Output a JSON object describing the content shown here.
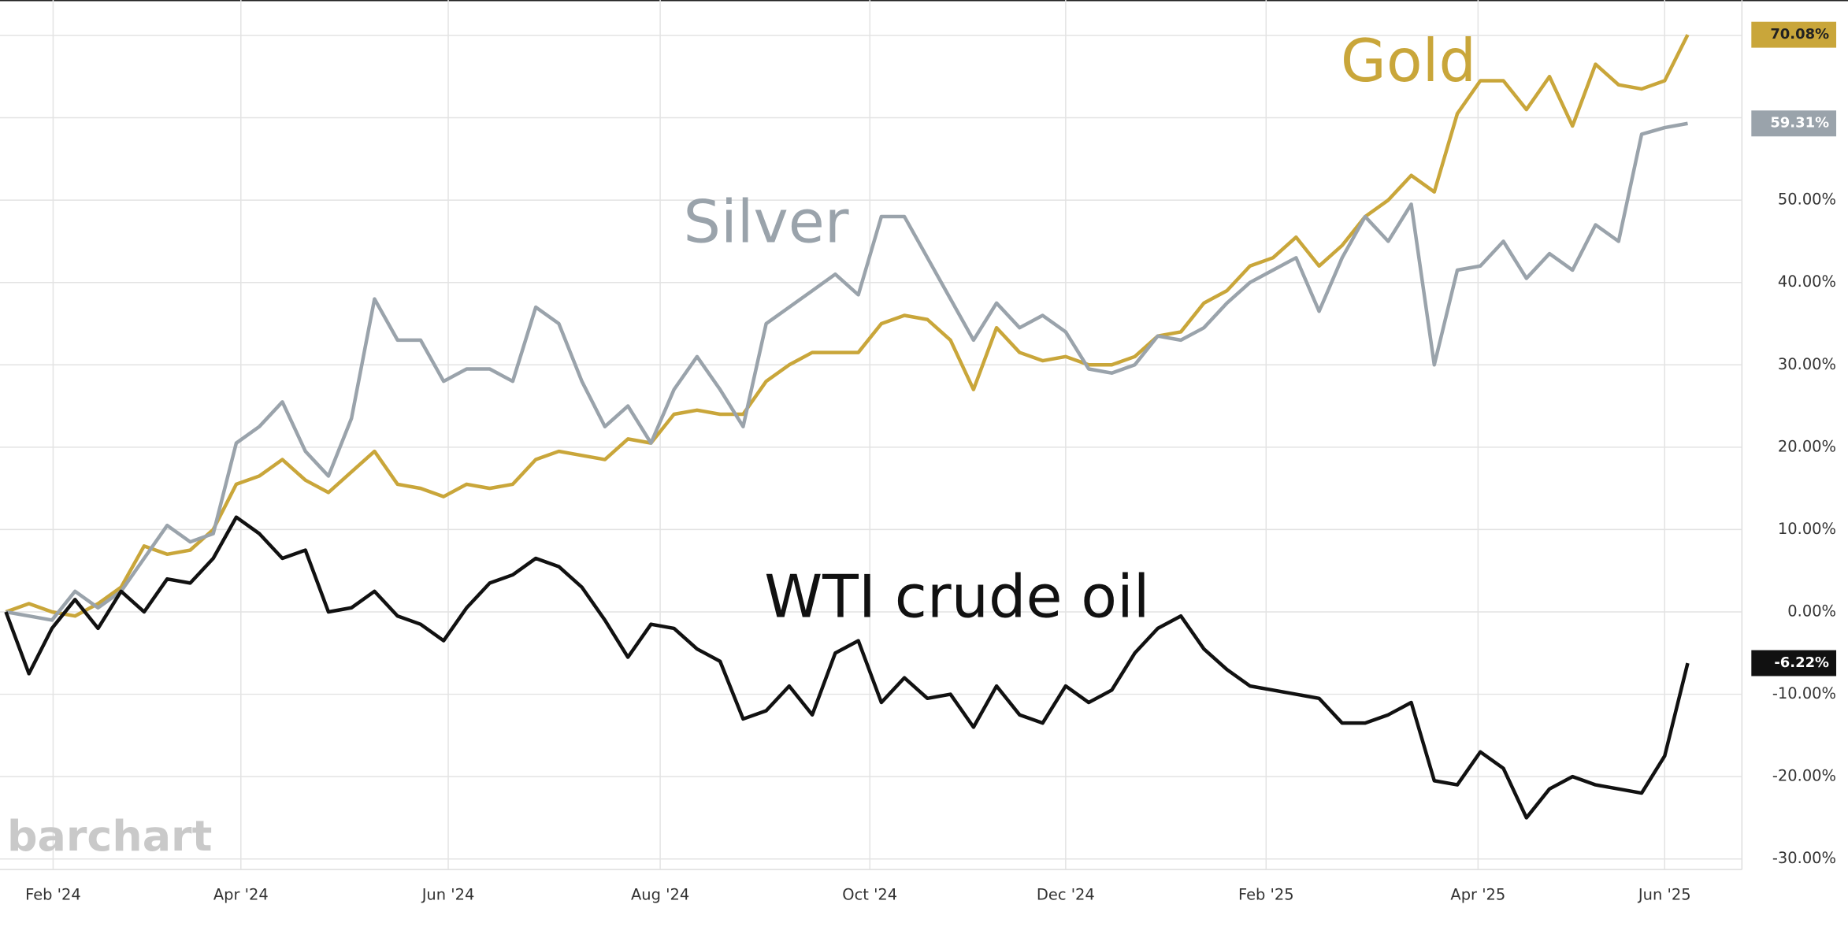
{
  "chart_data": {
    "type": "line",
    "watermark": "barchart",
    "xlim": [
      0,
      75.2
    ],
    "xticks": [
      {
        "value": 2.05,
        "label": "Feb '24"
      },
      {
        "value": 10.2,
        "label": "Apr '24"
      },
      {
        "value": 19.2,
        "label": "Jun '24"
      },
      {
        "value": 28.4,
        "label": "Aug '24"
      },
      {
        "value": 37.5,
        "label": "Oct '24"
      },
      {
        "value": 46.0,
        "label": "Dec '24"
      },
      {
        "value": 54.7,
        "label": "Feb '25"
      },
      {
        "value": 63.9,
        "label": "Apr '25"
      },
      {
        "value": 72.0,
        "label": "Jun '25"
      }
    ],
    "ylim": [
      -31,
      74.3
    ],
    "yticks": [
      {
        "value": -30,
        "label": "-30.00%"
      },
      {
        "value": -20,
        "label": "-20.00%"
      },
      {
        "value": -10,
        "label": "-10.00%"
      },
      {
        "value": 0,
        "label": "0.00%"
      },
      {
        "value": 10,
        "label": "10.00%"
      },
      {
        "value": 20,
        "label": "20.00%"
      },
      {
        "value": 30,
        "label": "30.00%"
      },
      {
        "value": 40,
        "label": "40.00%"
      },
      {
        "value": 50,
        "label": "50.00%"
      },
      {
        "value": 60
      },
      {
        "value": 70
      }
    ],
    "grid": true,
    "series": [
      {
        "name": "Gold",
        "color": "#c9a63a",
        "end_label": "70.08%",
        "values": [
          0,
          1,
          0,
          -0.5,
          1,
          3,
          8,
          7,
          7.5,
          10,
          15.5,
          16.5,
          18.5,
          16,
          14.5,
          17,
          19.5,
          15.5,
          15,
          14,
          15.5,
          15,
          15.5,
          18.5,
          19.5,
          19,
          18.5,
          21,
          20.5,
          24,
          24.5,
          24,
          24,
          28,
          30,
          31.5,
          31.5,
          31.5,
          35,
          36,
          35.5,
          33,
          27,
          34.5,
          31.5,
          30.5,
          31,
          30,
          30,
          31,
          33.5,
          34,
          37.5,
          39,
          42,
          43,
          45.5,
          42,
          44.5,
          48,
          50,
          53,
          51,
          60.5,
          64.5,
          64.5,
          61,
          65,
          59,
          66.5,
          64,
          63.5,
          64.5,
          70.08
        ]
      },
      {
        "name": "Silver",
        "color": "#9aa3ab",
        "end_label": "59.31%",
        "values": [
          0,
          -0.5,
          -1,
          2.5,
          0.5,
          2.5,
          6.5,
          10.5,
          8.5,
          9.5,
          20.5,
          22.5,
          25.5,
          19.5,
          16.5,
          23.5,
          38,
          33,
          33,
          28,
          29.5,
          29.5,
          28,
          37,
          35,
          28,
          22.5,
          25,
          20.5,
          27,
          31,
          27,
          22.5,
          35,
          37,
          39,
          41,
          38.5,
          48,
          48,
          43,
          38,
          33,
          37.5,
          34.5,
          36,
          34,
          29.5,
          29,
          30,
          33.5,
          33,
          34.5,
          37.5,
          40,
          41.5,
          43,
          36.5,
          43,
          48,
          45,
          49.5,
          30,
          41.5,
          42,
          45,
          40.5,
          43.5,
          41.5,
          47,
          45,
          58,
          58.8,
          59.31
        ]
      },
      {
        "name": "WTI crude oil",
        "color": "#111111",
        "end_label": "-6.22%",
        "values": [
          0,
          -7.5,
          -2,
          1.5,
          -2,
          2.5,
          0,
          4,
          3.5,
          6.5,
          11.5,
          9.5,
          6.5,
          7.5,
          0,
          0.5,
          2.5,
          -0.5,
          -1.5,
          -3.5,
          0.5,
          3.5,
          4.5,
          6.5,
          5.5,
          3,
          -1,
          -5.5,
          -1.5,
          -2,
          -4.5,
          -6,
          -13,
          -12,
          -9,
          -12.5,
          -5,
          -3.5,
          -11,
          -8,
          -10.5,
          -10,
          -14,
          -9,
          -12.5,
          -13.5,
          -9,
          -11,
          -9.5,
          -5,
          -2,
          -0.5,
          -4.5,
          -7,
          -9,
          -9.5,
          -10,
          -10.5,
          -13.5,
          -13.5,
          -12.5,
          -11,
          -20.5,
          -21,
          -17,
          -19,
          -25,
          -21.5,
          -20,
          -21,
          -21.5,
          -22,
          -17.5,
          -6.22
        ]
      }
    ]
  }
}
